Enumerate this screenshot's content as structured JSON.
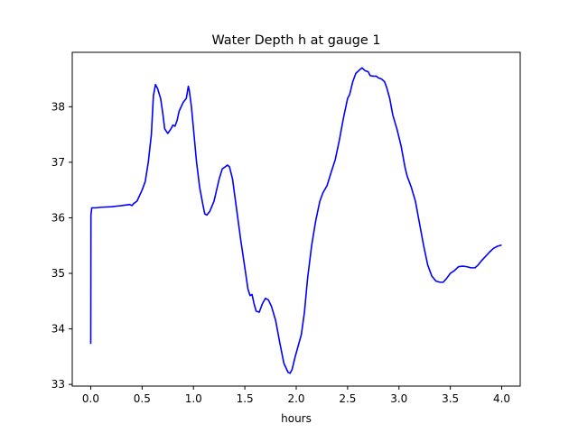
{
  "chart_data": {
    "type": "line",
    "title": "Water Depth h at gauge 1",
    "xlabel": "hours",
    "ylabel": "",
    "xlim": [
      -0.18,
      4.18
    ],
    "ylim": [
      32.97,
      38.98
    ],
    "grid": false,
    "x_ticks": [
      0.0,
      0.5,
      1.0,
      1.5,
      2.0,
      2.5,
      3.0,
      3.5,
      4.0
    ],
    "x_tick_labels": [
      "0.0",
      "0.5",
      "1.0",
      "1.5",
      "2.0",
      "2.5",
      "3.0",
      "3.5",
      "4.0"
    ],
    "y_ticks": [
      33,
      34,
      35,
      36,
      37,
      38
    ],
    "y_tick_labels": [
      "33",
      "34",
      "35",
      "36",
      "37",
      "38"
    ],
    "series": [
      {
        "color": "#0000ff",
        "points": [
          [
            0.0,
            33.73
          ],
          [
            0.002,
            36.05
          ],
          [
            0.01,
            36.18
          ],
          [
            0.05,
            36.18
          ],
          [
            0.1,
            36.19
          ],
          [
            0.2,
            36.2
          ],
          [
            0.3,
            36.22
          ],
          [
            0.38,
            36.24
          ],
          [
            0.4,
            36.22
          ],
          [
            0.42,
            36.26
          ],
          [
            0.45,
            36.3
          ],
          [
            0.5,
            36.5
          ],
          [
            0.53,
            36.65
          ],
          [
            0.56,
            37.0
          ],
          [
            0.59,
            37.5
          ],
          [
            0.61,
            38.2
          ],
          [
            0.63,
            38.4
          ],
          [
            0.65,
            38.33
          ],
          [
            0.68,
            38.15
          ],
          [
            0.7,
            37.9
          ],
          [
            0.72,
            37.6
          ],
          [
            0.75,
            37.52
          ],
          [
            0.78,
            37.6
          ],
          [
            0.8,
            37.67
          ],
          [
            0.82,
            37.65
          ],
          [
            0.84,
            37.75
          ],
          [
            0.86,
            37.92
          ],
          [
            0.9,
            38.08
          ],
          [
            0.93,
            38.15
          ],
          [
            0.95,
            38.37
          ],
          [
            0.96,
            38.28
          ],
          [
            0.98,
            38.0
          ],
          [
            1.0,
            37.6
          ],
          [
            1.03,
            37.0
          ],
          [
            1.06,
            36.55
          ],
          [
            1.09,
            36.25
          ],
          [
            1.11,
            36.07
          ],
          [
            1.13,
            36.05
          ],
          [
            1.16,
            36.12
          ],
          [
            1.2,
            36.3
          ],
          [
            1.25,
            36.7
          ],
          [
            1.28,
            36.88
          ],
          [
            1.31,
            36.92
          ],
          [
            1.33,
            36.95
          ],
          [
            1.35,
            36.92
          ],
          [
            1.38,
            36.7
          ],
          [
            1.42,
            36.15
          ],
          [
            1.46,
            35.6
          ],
          [
            1.5,
            35.1
          ],
          [
            1.53,
            34.72
          ],
          [
            1.55,
            34.6
          ],
          [
            1.57,
            34.62
          ],
          [
            1.59,
            34.45
          ],
          [
            1.61,
            34.32
          ],
          [
            1.64,
            34.3
          ],
          [
            1.67,
            34.45
          ],
          [
            1.7,
            34.55
          ],
          [
            1.73,
            34.52
          ],
          [
            1.76,
            34.4
          ],
          [
            1.8,
            34.15
          ],
          [
            1.84,
            33.75
          ],
          [
            1.88,
            33.38
          ],
          [
            1.92,
            33.22
          ],
          [
            1.94,
            33.2
          ],
          [
            1.96,
            33.27
          ],
          [
            1.99,
            33.5
          ],
          [
            2.02,
            33.7
          ],
          [
            2.05,
            33.9
          ],
          [
            2.08,
            34.3
          ],
          [
            2.11,
            34.9
          ],
          [
            2.15,
            35.5
          ],
          [
            2.19,
            35.95
          ],
          [
            2.23,
            36.3
          ],
          [
            2.26,
            36.45
          ],
          [
            2.3,
            36.58
          ],
          [
            2.34,
            36.82
          ],
          [
            2.38,
            37.05
          ],
          [
            2.42,
            37.4
          ],
          [
            2.46,
            37.8
          ],
          [
            2.5,
            38.15
          ],
          [
            2.52,
            38.22
          ],
          [
            2.55,
            38.45
          ],
          [
            2.58,
            38.6
          ],
          [
            2.62,
            38.67
          ],
          [
            2.64,
            38.7
          ],
          [
            2.67,
            38.65
          ],
          [
            2.7,
            38.63
          ],
          [
            2.72,
            38.56
          ],
          [
            2.75,
            38.55
          ],
          [
            2.78,
            38.55
          ],
          [
            2.8,
            38.52
          ],
          [
            2.83,
            38.5
          ],
          [
            2.86,
            38.45
          ],
          [
            2.88,
            38.35
          ],
          [
            2.91,
            38.15
          ],
          [
            2.94,
            37.85
          ],
          [
            2.98,
            37.6
          ],
          [
            3.02,
            37.3
          ],
          [
            3.06,
            36.9
          ],
          [
            3.08,
            36.75
          ],
          [
            3.12,
            36.55
          ],
          [
            3.16,
            36.3
          ],
          [
            3.2,
            35.9
          ],
          [
            3.24,
            35.5
          ],
          [
            3.28,
            35.15
          ],
          [
            3.32,
            34.95
          ],
          [
            3.36,
            34.86
          ],
          [
            3.4,
            34.84
          ],
          [
            3.43,
            34.84
          ],
          [
            3.46,
            34.9
          ],
          [
            3.5,
            35.0
          ],
          [
            3.54,
            35.05
          ],
          [
            3.58,
            35.12
          ],
          [
            3.62,
            35.13
          ],
          [
            3.66,
            35.12
          ],
          [
            3.7,
            35.1
          ],
          [
            3.74,
            35.1
          ],
          [
            3.77,
            35.15
          ],
          [
            3.8,
            35.22
          ],
          [
            3.84,
            35.3
          ],
          [
            3.88,
            35.38
          ],
          [
            3.92,
            35.45
          ],
          [
            3.96,
            35.49
          ],
          [
            4.0,
            35.51
          ]
        ]
      }
    ]
  }
}
